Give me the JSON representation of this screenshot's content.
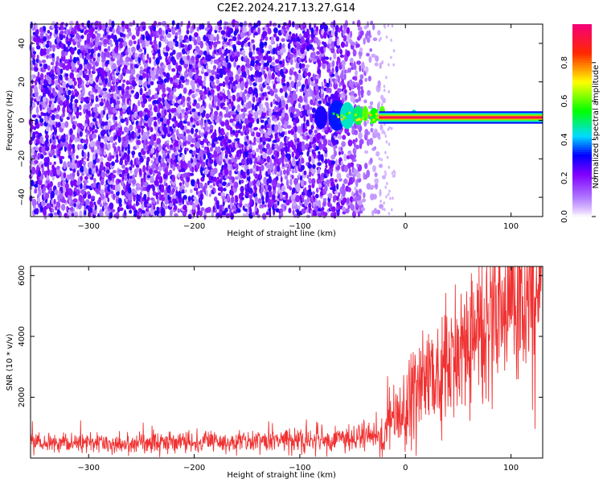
{
  "title": "C2E2.2024.217.13.27.G14",
  "chart_data": [
    {
      "type": "heatmap",
      "xlabel": "Height of straight line (km)",
      "ylabel": "Frequency (Hz)",
      "xlim": [
        -355,
        130
      ],
      "ylim": [
        -50,
        50
      ],
      "x_ticks": [
        -300,
        -200,
        -100,
        0,
        100
      ],
      "y_ticks": [
        -40,
        -20,
        0,
        20,
        40
      ],
      "grid": false,
      "colorbar": {
        "label": "Normalized spectral amplitude",
        "range": [
          0,
          1
        ],
        "ticks": [
          0.0,
          0.2,
          0.4,
          0.6,
          0.8
        ],
        "tick_labels": [
          "0.0",
          "0.2",
          "0.4",
          "0.6",
          "0.8"
        ]
      },
      "features": {
        "noise_region_x": [
          -355,
          -25
        ],
        "noise_amplitude": [
          0.05,
          0.3
        ],
        "carrier_start_x": -85,
        "carrier_frequency_hz": 1.5,
        "carrier_amplitude": 0.95
      }
    },
    {
      "type": "line",
      "xlabel": "Height of straight line (km)",
      "ylabel": "SNR (10 * v/v)",
      "xlim": [
        -355,
        130
      ],
      "ylim": [
        0,
        6300
      ],
      "x_ticks": [
        -300,
        -200,
        -100,
        0,
        100
      ],
      "y_ticks": [
        2000,
        4000,
        6000
      ],
      "grid": false,
      "series": [
        {
          "color": "#f03232",
          "x": [
            -355,
            -300,
            -250,
            -200,
            -150,
            -100,
            -50,
            -30,
            -20,
            -10,
            0,
            10,
            20,
            30,
            40,
            50,
            60,
            70,
            80,
            90,
            100,
            110,
            120,
            130
          ],
          "y": [
            480,
            490,
            500,
            510,
            530,
            560,
            620,
            700,
            900,
            1250,
            1700,
            2100,
            2450,
            2800,
            3150,
            3450,
            3750,
            4050,
            4350,
            4650,
            4950,
            5250,
            5500,
            5650
          ]
        }
      ]
    }
  ]
}
